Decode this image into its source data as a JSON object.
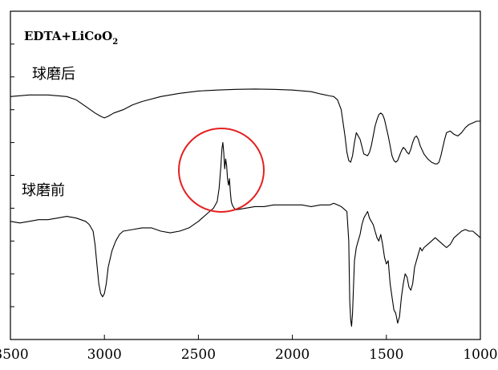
{
  "chart_data": {
    "type": "line",
    "title": "EDTA+LiCoO",
    "title_subscript": "2",
    "xlabel": "",
    "ylabel": "",
    "x_reversed": true,
    "xlim": [
      3500,
      1000
    ],
    "ylim": [
      0,
      1
    ],
    "x_ticks": [
      3500,
      3000,
      2500,
      2000,
      1500,
      1000
    ],
    "grid": false,
    "annotations": [
      {
        "text": "球磨后",
        "series": "球磨后"
      },
      {
        "text": "球磨前",
        "series": "球磨前"
      },
      {
        "type": "red-circle",
        "around_x": 2340
      }
    ],
    "series": [
      {
        "name": "球磨后",
        "x": [
          3500,
          3400,
          3300,
          3200,
          3150,
          3100,
          3050,
          3020,
          3000,
          2980,
          2950,
          2900,
          2850,
          2800,
          2700,
          2600,
          2500,
          2400,
          2300,
          2200,
          2100,
          2000,
          1900,
          1850,
          1800,
          1780,
          1760,
          1740,
          1720,
          1710,
          1700,
          1690,
          1680,
          1670,
          1660,
          1640,
          1620,
          1600,
          1590,
          1580,
          1570,
          1560,
          1550,
          1540,
          1530,
          1520,
          1510,
          1500,
          1490,
          1480,
          1470,
          1460,
          1450,
          1440,
          1430,
          1420,
          1410,
          1400,
          1390,
          1380,
          1370,
          1360,
          1350,
          1340,
          1330,
          1320,
          1300,
          1280,
          1260,
          1240,
          1230,
          1220,
          1210,
          1200,
          1190,
          1180,
          1160,
          1140,
          1120,
          1100,
          1080,
          1060,
          1040,
          1020,
          1000
        ],
        "y": [
          0.74,
          0.745,
          0.745,
          0.74,
          0.73,
          0.71,
          0.69,
          0.68,
          0.675,
          0.68,
          0.69,
          0.7,
          0.715,
          0.725,
          0.74,
          0.75,
          0.757,
          0.76,
          0.762,
          0.763,
          0.762,
          0.76,
          0.755,
          0.748,
          0.742,
          0.74,
          0.73,
          0.7,
          0.62,
          0.57,
          0.545,
          0.54,
          0.56,
          0.6,
          0.63,
          0.61,
          0.565,
          0.56,
          0.57,
          0.59,
          0.62,
          0.65,
          0.67,
          0.685,
          0.69,
          0.685,
          0.67,
          0.645,
          0.62,
          0.59,
          0.56,
          0.545,
          0.54,
          0.545,
          0.56,
          0.575,
          0.585,
          0.58,
          0.57,
          0.565,
          0.58,
          0.6,
          0.615,
          0.62,
          0.61,
          0.59,
          0.565,
          0.55,
          0.54,
          0.535,
          0.535,
          0.54,
          0.56,
          0.585,
          0.61,
          0.63,
          0.635,
          0.625,
          0.62,
          0.63,
          0.645,
          0.655,
          0.66,
          0.665,
          0.665
        ]
      },
      {
        "name": "球磨前",
        "x": [
          3500,
          3450,
          3400,
          3350,
          3300,
          3250,
          3200,
          3150,
          3100,
          3080,
          3060,
          3050,
          3040,
          3030,
          3020,
          3010,
          3000,
          2990,
          2980,
          2960,
          2940,
          2920,
          2900,
          2850,
          2800,
          2750,
          2700,
          2650,
          2600,
          2550,
          2500,
          2450,
          2420,
          2400,
          2390,
          2380,
          2375,
          2370,
          2365,
          2360,
          2355,
          2350,
          2345,
          2340,
          2335,
          2330,
          2325,
          2320,
          2310,
          2300,
          2250,
          2200,
          2150,
          2100,
          2050,
          2000,
          1950,
          1900,
          1850,
          1800,
          1780,
          1760,
          1740,
          1730,
          1720,
          1710,
          1700,
          1695,
          1690,
          1685,
          1680,
          1675,
          1670,
          1660,
          1650,
          1640,
          1630,
          1620,
          1610,
          1600,
          1590,
          1580,
          1570,
          1560,
          1550,
          1540,
          1530,
          1520,
          1510,
          1500,
          1490,
          1480,
          1470,
          1460,
          1450,
          1440,
          1430,
          1420,
          1410,
          1400,
          1390,
          1380,
          1370,
          1360,
          1350,
          1340,
          1330,
          1320,
          1310,
          1300,
          1280,
          1260,
          1240,
          1220,
          1200,
          1180,
          1160,
          1140,
          1120,
          1100,
          1080,
          1060,
          1040,
          1020,
          1000
        ],
        "y": [
          0.36,
          0.355,
          0.36,
          0.365,
          0.365,
          0.37,
          0.375,
          0.37,
          0.36,
          0.35,
          0.33,
          0.29,
          0.23,
          0.17,
          0.14,
          0.13,
          0.14,
          0.17,
          0.22,
          0.27,
          0.3,
          0.32,
          0.33,
          0.335,
          0.34,
          0.34,
          0.33,
          0.325,
          0.33,
          0.34,
          0.36,
          0.385,
          0.4,
          0.42,
          0.46,
          0.53,
          0.58,
          0.6,
          0.57,
          0.52,
          0.55,
          0.53,
          0.49,
          0.47,
          0.49,
          0.45,
          0.42,
          0.41,
          0.4,
          0.395,
          0.4,
          0.405,
          0.405,
          0.41,
          0.41,
          0.41,
          0.41,
          0.405,
          0.41,
          0.41,
          0.415,
          0.41,
          0.405,
          0.4,
          0.395,
          0.39,
          0.3,
          0.12,
          0.06,
          0.04,
          0.08,
          0.16,
          0.24,
          0.28,
          0.3,
          0.32,
          0.35,
          0.37,
          0.38,
          0.39,
          0.37,
          0.36,
          0.35,
          0.33,
          0.31,
          0.3,
          0.32,
          0.29,
          0.25,
          0.23,
          0.24,
          0.17,
          0.13,
          0.09,
          0.08,
          0.05,
          0.07,
          0.13,
          0.17,
          0.2,
          0.19,
          0.16,
          0.15,
          0.17,
          0.22,
          0.24,
          0.26,
          0.28,
          0.27,
          0.28,
          0.29,
          0.3,
          0.31,
          0.3,
          0.29,
          0.28,
          0.29,
          0.31,
          0.32,
          0.33,
          0.335,
          0.33,
          0.33,
          0.32,
          0.31
        ]
      }
    ]
  }
}
